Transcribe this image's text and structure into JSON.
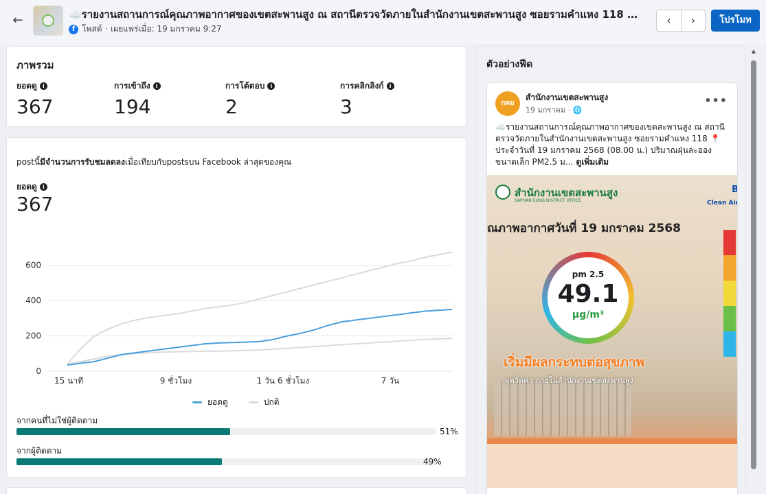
{
  "header": {
    "back_icon": "arrow-left-icon",
    "title": "☁️รายงานสถานการณ์คุณภาพอากาศของเขตสะพานสูง ณ สถานีตรวจวัดภายในสำนักงานเขตสะพานสูง ซอยรามคำแหง 118 📍ประ...",
    "platform_label": "โพสต์",
    "published": "· เผยแพร่เมื่อ: 19 มกราคม 9:27",
    "prev_icon": "chevron-left-icon",
    "next_icon": "chevron-right-icon",
    "promote_label": "โปรโมท"
  },
  "overview": {
    "title": "ภาพรวม",
    "metrics": [
      {
        "label": "ยอดดู",
        "value": "367"
      },
      {
        "label": "การเข้าถึง",
        "value": "194"
      },
      {
        "label": "การโต้ตอบ",
        "value": "2"
      },
      {
        "label": "การคลิกลิงก์",
        "value": "3"
      }
    ]
  },
  "performance": {
    "note_prefix": "postนี้",
    "note_bold": "มีจำนวนการรับชมลดลง",
    "note_suffix": "เมื่อเทียบกับpostsบน Facebook ล่าสุดของคุณ",
    "reach_label": "ยอดดู",
    "reach_value": "367",
    "audience": [
      {
        "label": "จากคนที่ไม่ใช่ผู้ติดตาม",
        "percent": 51,
        "display": "51%"
      },
      {
        "label": "จากผู้ติดตาม",
        "percent": 49,
        "display": "49%"
      }
    ]
  },
  "chart_data": {
    "type": "line",
    "x_ticks": [
      "15 นาที",
      "9 ชั่วโมง",
      "1 วัน 6 ชั่วโมง",
      "7 วัน"
    ],
    "y_ticks": [
      "0",
      "200",
      "400",
      "600"
    ],
    "ylim": [
      0,
      700
    ],
    "grid": true,
    "legend": "bottom",
    "series": [
      {
        "name": "ยอดดู",
        "color": "#4a9fdc",
        "values": [
          35,
          45,
          55,
          75,
          95,
          105,
          115,
          125,
          135,
          145,
          155,
          160,
          162,
          165,
          168,
          180,
          200,
          215,
          235,
          260,
          280,
          290,
          300,
          310,
          320,
          330,
          340,
          345,
          350
        ]
      },
      {
        "name": "ปกติ",
        "color": "#d9dadc",
        "values": [
          40,
          130,
          200,
          240,
          270,
          290,
          305,
          315,
          325,
          340,
          355,
          365,
          375,
          390,
          410,
          430,
          450,
          470,
          490,
          510,
          530,
          550,
          570,
          590,
          610,
          625,
          645,
          660,
          675
        ]
      },
      {
        "name": "",
        "color": "#d9dadc",
        "values": [
          40,
          55,
          70,
          85,
          95,
          100,
          105,
          108,
          110,
          112,
          113,
          114,
          115,
          118,
          120,
          125,
          130,
          135,
          140,
          145,
          150,
          155,
          160,
          165,
          170,
          175,
          180,
          183,
          186
        ]
      }
    ]
  },
  "feed_preview": {
    "title": "ตัวอย่างฟีด",
    "page_avatar": "กทม",
    "page_name": "สำนักงานเขตสะพานสูง",
    "post_date": "19 มกราคม · 🌐",
    "more_icon": "more-dots-icon",
    "text": "☁️รายงานสถานการณ์คุณภาพอากาศของเขตสะพานสูง ณ สถานีตรวจวัดภายในสำนักงานเขตสะพานสูง ซอยรามคำแหง 118 📍ประจำวันที่ 19 มกราคม 2568 (08.00 น.) ปริมาณฝุ่นละอองขนาดเล็ก PM2.5 ม...",
    "see_more": " ดูเพิ่มเติม",
    "image": {
      "org": "สำนักงานเขตสะพานสูง",
      "org_sub": "SAPHAN SUNG DISTRICT OFFICE",
      "brand": "B",
      "brand_sub": "Clean Air",
      "headline": "ณภาพอากาศวันที่ 19 มกราคม 2568",
      "gauge_label": "pm 2.5",
      "gauge_value": "49.1",
      "gauge_unit": "µg/m³",
      "slogan": "เริ่มมีผลกระทบต่อสุขภาพ",
      "sub": "จุดวัดค่า ภายในสำนักงานเขตสะพานสูง",
      "scale_colors": [
        "#e53935",
        "#f2a62e",
        "#f2d93a",
        "#6cc04a",
        "#2fb6e8"
      ]
    }
  }
}
